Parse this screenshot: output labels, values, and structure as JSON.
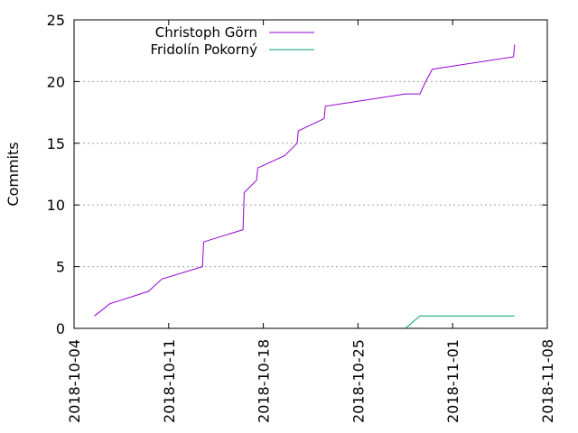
{
  "chart_data": {
    "type": "line",
    "title": "",
    "xlabel": "",
    "ylabel": "Commits",
    "ylim": [
      0,
      25
    ],
    "xlim": [
      "2018-10-04",
      "2018-11-08"
    ],
    "yticks": [
      0,
      5,
      10,
      15,
      20,
      25
    ],
    "xticks": [
      "2018-10-04",
      "2018-10-11",
      "2018-10-18",
      "2018-10-25",
      "2018-11-01",
      "2018-11-08"
    ],
    "grid": "horizontal",
    "legend": "top-left",
    "series": [
      {
        "name": "Christoph Görn",
        "color": "#9400d3",
        "points": [
          [
            "2018-10-05T12:00",
            1
          ],
          [
            "2018-10-06T16:00",
            2
          ],
          [
            "2018-10-09T12:00",
            3
          ],
          [
            "2018-10-10T12:00",
            4
          ],
          [
            "2018-10-13T12:00",
            5
          ],
          [
            "2018-10-13T14:00",
            7
          ],
          [
            "2018-10-16T12:00",
            8
          ],
          [
            "2018-10-16T14:00",
            11
          ],
          [
            "2018-10-17T12:00",
            12
          ],
          [
            "2018-10-17T14:00",
            13
          ],
          [
            "2018-10-19T14:00",
            14
          ],
          [
            "2018-10-20T12:00",
            15
          ],
          [
            "2018-10-20T14:00",
            16
          ],
          [
            "2018-10-22T12:00",
            17
          ],
          [
            "2018-10-22T14:00",
            18
          ],
          [
            "2018-10-28T12:00",
            19
          ],
          [
            "2018-10-29T14:00",
            19
          ],
          [
            "2018-10-30T00:00",
            20
          ],
          [
            "2018-10-30T12:00",
            21
          ],
          [
            "2018-11-05T12:00",
            22
          ],
          [
            "2018-11-05T14:00",
            23
          ]
        ]
      },
      {
        "name": "Fridolín Pokorný",
        "color": "#009e73",
        "points": [
          [
            "2018-10-28T12:00",
            0
          ],
          [
            "2018-10-29T14:00",
            1
          ],
          [
            "2018-11-05T14:00",
            1
          ]
        ]
      }
    ]
  }
}
